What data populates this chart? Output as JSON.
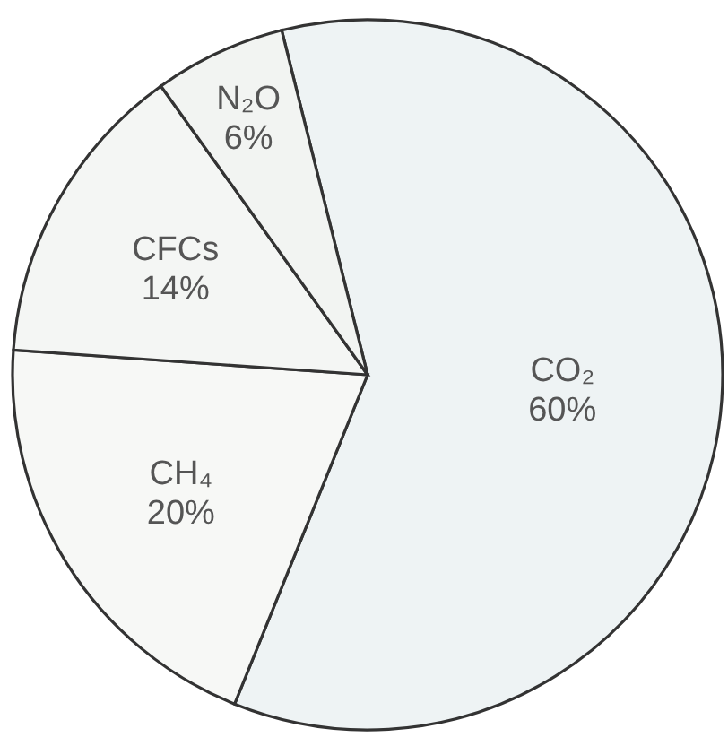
{
  "chart_data": {
    "type": "pie",
    "categories": [
      "CO₂",
      "CH₄",
      "CFCs",
      "N₂O"
    ],
    "values": [
      60,
      20,
      14,
      6
    ],
    "value_labels": [
      "60%",
      "20%",
      "14%",
      "6%"
    ],
    "colors": [
      "#eef3f4",
      "#f7f8f6",
      "#f4f6f4",
      "#f2f4f2"
    ]
  }
}
